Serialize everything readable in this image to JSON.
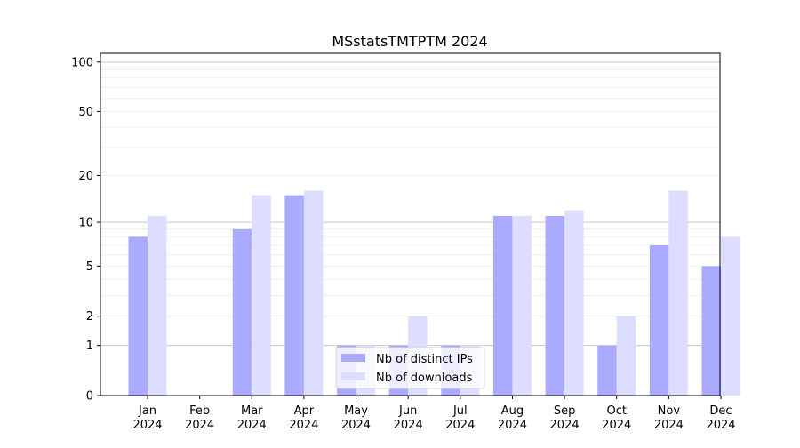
{
  "chart_data": {
    "type": "bar",
    "title": "MSstatsTMTPTM 2024",
    "xlabel": "",
    "ylabel": "",
    "yscale": "symlog",
    "ylim": [
      0,
      113
    ],
    "grid": true,
    "legend_position": "lower center",
    "categories": [
      "Jan\n2024",
      "Feb\n2024",
      "Mar\n2024",
      "Apr\n2024",
      "May\n2024",
      "Jun\n2024",
      "Jul\n2024",
      "Aug\n2024",
      "Sep\n2024",
      "Oct\n2024",
      "Nov\n2024",
      "Dec\n2024"
    ],
    "yticks": [
      0,
      1,
      2,
      5,
      10,
      20,
      50,
      100
    ],
    "series": [
      {
        "name": "Nb of distinct IPs",
        "color": "#aaaaff",
        "values": [
          8,
          0,
          9,
          15,
          1,
          1,
          1,
          11,
          11,
          1,
          7,
          5
        ]
      },
      {
        "name": "Nb of downloads",
        "color": "#ddddff",
        "values": [
          11,
          0,
          15,
          16,
          1,
          2,
          1,
          11,
          12,
          2,
          16,
          8
        ]
      }
    ]
  }
}
